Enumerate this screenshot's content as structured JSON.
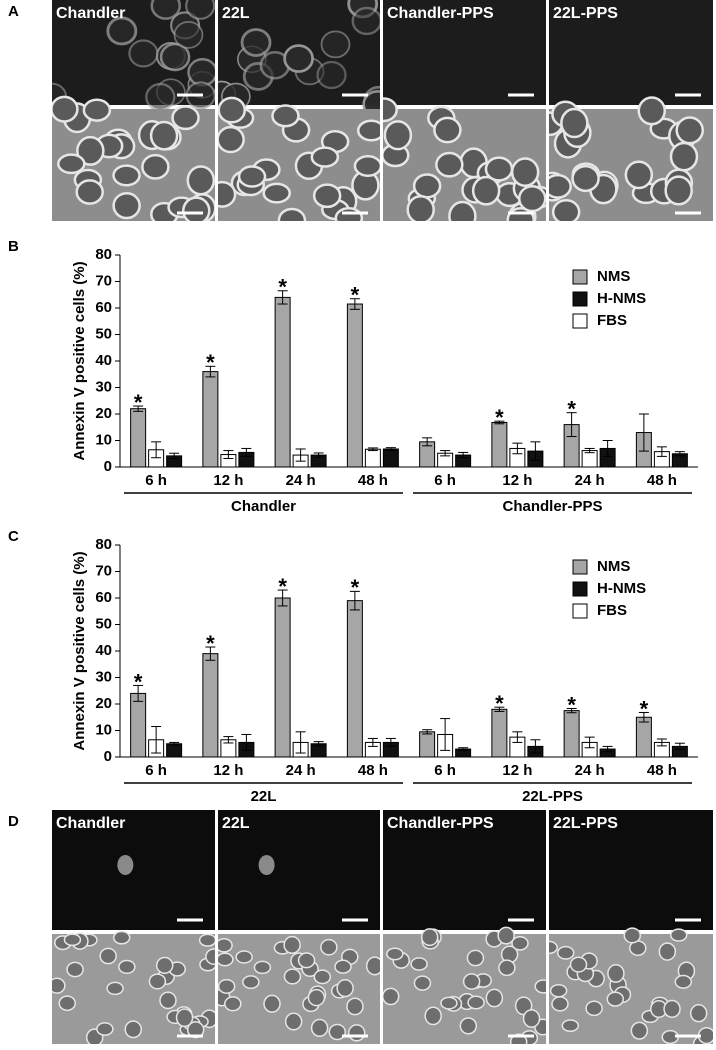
{
  "micrographs": [
    {
      "panel": "A",
      "labels": [
        "Chandler",
        "22L",
        "Chandler-PPS",
        "22L-PPS"
      ]
    },
    {
      "panel": "D",
      "labels": [
        "Chandler",
        "22L",
        "Chandler-PPS",
        "22L-PPS"
      ]
    }
  ],
  "chart_data": [
    {
      "type": "bar",
      "panel": "B",
      "y_label": "Annexin V positive cells (%)",
      "categories": [
        "6 h",
        "12 h",
        "24 h",
        "48 h",
        "6 h",
        "12 h",
        "24 h",
        "48 h"
      ],
      "groups": [
        "Chandler",
        "Chandler-PPS"
      ],
      "ylim": [
        0,
        80
      ],
      "yticks": [
        0,
        10,
        20,
        30,
        40,
        50,
        60,
        70,
        80
      ],
      "legend": "upper right",
      "significance_label": "*",
      "series": [
        {
          "name": "NMS",
          "color": "#a6a6a6",
          "values": [
            22,
            36,
            64,
            61.5,
            9.5,
            16.8,
            16,
            13
          ],
          "errors": [
            1,
            2,
            2.5,
            2,
            1.5,
            0.5,
            4.5,
            7
          ],
          "significant": [
            true,
            true,
            true,
            true,
            false,
            true,
            true,
            false
          ]
        },
        {
          "name": "H-NMS",
          "color": "#111111",
          "values": [
            4.2,
            5.5,
            4.5,
            6.8,
            4.5,
            6,
            7,
            5
          ],
          "errors": [
            1,
            1.5,
            0.8,
            0.5,
            1,
            3.5,
            3,
            0.8
          ]
        },
        {
          "name": "FBS",
          "color": "#ffffff",
          "values": [
            6.5,
            4.7,
            4.5,
            6.7,
            5.2,
            7,
            6.2,
            5.8
          ],
          "errors": [
            3,
            1.5,
            2.3,
            0.5,
            1,
            2,
            0.8,
            1.8
          ]
        }
      ]
    },
    {
      "type": "bar",
      "panel": "C",
      "y_label": "Annexin V positive cells (%)",
      "categories": [
        "6 h",
        "12 h",
        "24 h",
        "48 h",
        "6 h",
        "12 h",
        "24 h",
        "48 h"
      ],
      "groups": [
        "22L",
        "22L-PPS"
      ],
      "ylim": [
        0,
        80
      ],
      "yticks": [
        0,
        10,
        20,
        30,
        40,
        50,
        60,
        70,
        80
      ],
      "legend": "upper right",
      "significance_label": "*",
      "series": [
        {
          "name": "NMS",
          "color": "#a6a6a6",
          "values": [
            24,
            39,
            60,
            59,
            9.5,
            18,
            17.5,
            15
          ],
          "errors": [
            3,
            2.5,
            3,
            3.5,
            0.8,
            0.8,
            0.8,
            1.8
          ],
          "significant": [
            true,
            true,
            true,
            true,
            false,
            true,
            true,
            true
          ]
        },
        {
          "name": "H-NMS",
          "color": "#111111",
          "values": [
            5,
            5.5,
            5,
            5.5,
            3,
            4,
            3,
            4
          ],
          "errors": [
            0.5,
            3,
            0.8,
            1.5,
            0.5,
            2.5,
            1,
            1.2
          ]
        },
        {
          "name": "FBS",
          "color": "#ffffff",
          "values": [
            6.5,
            6.5,
            5.5,
            5.5,
            8.5,
            7.5,
            5.5,
            5.5
          ],
          "errors": [
            5,
            1.2,
            4,
            1.5,
            6,
            2,
            2,
            1.3
          ]
        }
      ]
    }
  ]
}
